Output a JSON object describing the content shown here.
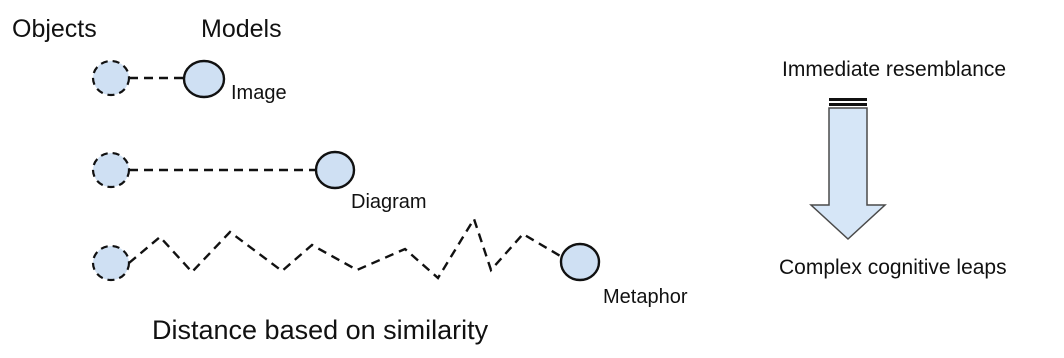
{
  "headers": {
    "objects": "Objects",
    "models": "Models"
  },
  "models": [
    {
      "label": "Image"
    },
    {
      "label": "Diagram"
    },
    {
      "label": "Metaphor"
    }
  ],
  "arrow": {
    "top_label": "Immediate resemblance",
    "bottom_label": "Complex cognitive leaps"
  },
  "caption": "Distance based on similarity",
  "colors": {
    "node_fill": "#cfe0f3",
    "stroke": "#111111",
    "arrow_fill": "#d6e6f7",
    "arrow_stroke": "#4a4a4a"
  }
}
